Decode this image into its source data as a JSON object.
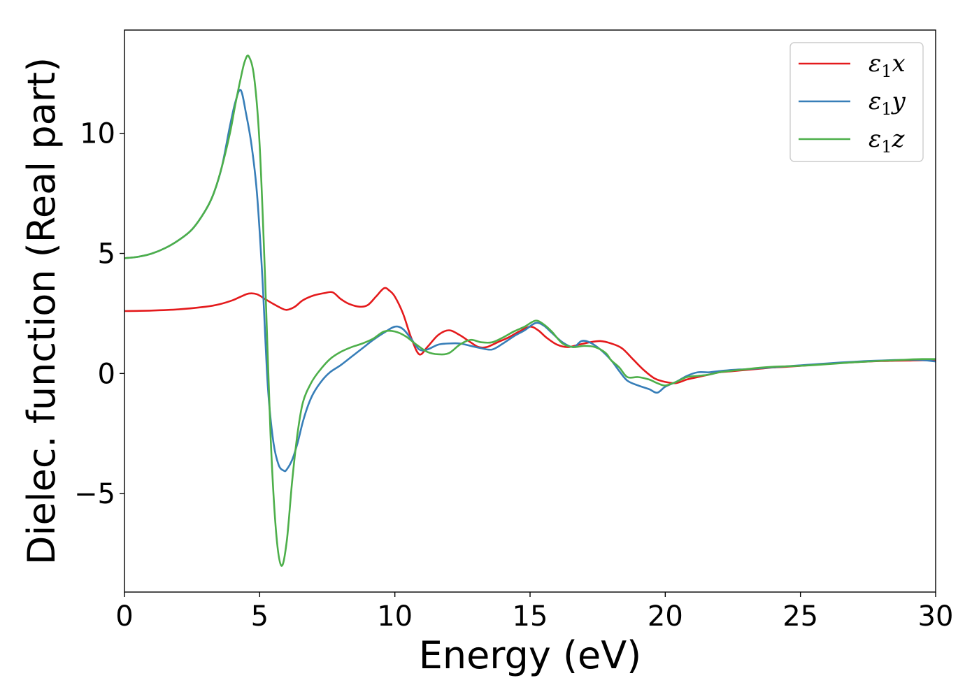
{
  "chart_data": {
    "type": "line",
    "title": "",
    "xlabel": "Energy (eV)",
    "ylabel": "Dielec. function (Real part)",
    "xlim": [
      0,
      30
    ],
    "ylim": [
      -9.1,
      14.3
    ],
    "xticks": [
      0,
      5,
      10,
      15,
      20,
      25,
      30
    ],
    "xtick_labels": [
      "0",
      "5",
      "10",
      "15",
      "20",
      "25",
      "30"
    ],
    "yticks": [
      -5,
      0,
      5,
      10
    ],
    "ytick_labels": [
      "−5",
      "0",
      "5",
      "10"
    ],
    "grid": false,
    "legend_position": "top-right",
    "series": [
      {
        "name": "ε₁x",
        "legend_main": "ε",
        "legend_sub": "1",
        "legend_tail": "x",
        "color": "#e41a1c",
        "x": [
          0,
          1,
          2,
          3,
          3.5,
          4,
          4.3,
          4.6,
          4.9,
          5.2,
          5.5,
          5.8,
          6.0,
          6.3,
          6.6,
          7.0,
          7.4,
          7.7,
          8.0,
          8.3,
          8.7,
          9.0,
          9.3,
          9.6,
          9.8,
          10.0,
          10.3,
          10.6,
          10.9,
          11.2,
          11.6,
          12.0,
          12.4,
          12.8,
          13.1,
          13.4,
          13.8,
          14.2,
          14.6,
          15.0,
          15.3,
          15.6,
          16.0,
          16.4,
          16.8,
          17.2,
          17.6,
          18.0,
          18.4,
          18.8,
          19.2,
          19.6,
          20.0,
          20.4,
          20.8,
          21.2,
          21.6,
          22.0,
          22.5,
          23.0,
          23.5,
          24.0,
          24.5,
          25.0,
          25.5,
          26.0,
          26.5,
          27.0,
          27.5,
          28.0,
          28.5,
          29.0,
          29.5,
          30
        ],
        "y": [
          2.6,
          2.62,
          2.67,
          2.78,
          2.88,
          3.05,
          3.2,
          3.33,
          3.3,
          3.1,
          2.9,
          2.72,
          2.65,
          2.78,
          3.05,
          3.25,
          3.35,
          3.38,
          3.1,
          2.9,
          2.78,
          2.85,
          3.2,
          3.55,
          3.45,
          3.2,
          2.5,
          1.5,
          0.8,
          1.1,
          1.6,
          1.8,
          1.6,
          1.3,
          1.1,
          1.1,
          1.3,
          1.5,
          1.75,
          1.95,
          1.8,
          1.5,
          1.2,
          1.1,
          1.2,
          1.3,
          1.35,
          1.25,
          1.05,
          0.6,
          0.15,
          -0.2,
          -0.35,
          -0.4,
          -0.25,
          -0.15,
          -0.05,
          0.05,
          0.1,
          0.15,
          0.2,
          0.25,
          0.28,
          0.32,
          0.36,
          0.4,
          0.44,
          0.47,
          0.5,
          0.52,
          0.53,
          0.54,
          0.55,
          0.55
        ]
      },
      {
        "name": "ε₁y",
        "legend_main": "ε",
        "legend_sub": "1",
        "legend_tail": "y",
        "color": "#377eb8",
        "x": [
          0,
          0.5,
          1,
          1.5,
          2,
          2.5,
          3,
          3.3,
          3.6,
          3.9,
          4.1,
          4.3,
          4.5,
          4.7,
          4.9,
          5.1,
          5.3,
          5.5,
          5.7,
          5.9,
          6.0,
          6.2,
          6.4,
          6.6,
          6.8,
          7.0,
          7.3,
          7.6,
          8.0,
          8.4,
          8.8,
          9.2,
          9.6,
          10.0,
          10.3,
          10.6,
          10.9,
          11.2,
          11.6,
          12.0,
          12.4,
          12.8,
          13.2,
          13.6,
          14.0,
          14.4,
          14.8,
          15.2,
          15.5,
          15.8,
          16.2,
          16.6,
          16.9,
          17.2,
          17.6,
          18.0,
          18.3,
          18.6,
          19.0,
          19.4,
          19.7,
          20.0,
          20.4,
          20.8,
          21.2,
          21.6,
          22.0,
          22.5,
          23.0,
          23.5,
          24.0,
          24.5,
          25.0,
          25.5,
          26.0,
          26.5,
          27.0,
          27.5,
          28.0,
          28.5,
          29.0,
          29.5,
          30
        ],
        "y": [
          4.8,
          4.86,
          4.99,
          5.22,
          5.55,
          6.0,
          6.8,
          7.5,
          8.6,
          10.3,
          11.3,
          11.8,
          10.8,
          9.5,
          7.5,
          4.0,
          -0.5,
          -2.8,
          -3.8,
          -4.05,
          -4.0,
          -3.6,
          -2.9,
          -2.0,
          -1.3,
          -0.8,
          -0.3,
          0.05,
          0.35,
          0.7,
          1.05,
          1.4,
          1.7,
          1.95,
          1.85,
          1.45,
          1.0,
          1.0,
          1.2,
          1.25,
          1.25,
          1.15,
          1.05,
          1.0,
          1.25,
          1.55,
          1.8,
          2.1,
          2.0,
          1.7,
          1.3,
          1.1,
          1.35,
          1.3,
          1.0,
          0.55,
          0.1,
          -0.3,
          -0.5,
          -0.65,
          -0.8,
          -0.55,
          -0.35,
          -0.1,
          0.05,
          0.05,
          0.1,
          0.15,
          0.18,
          0.22,
          0.26,
          0.3,
          0.34,
          0.38,
          0.42,
          0.46,
          0.49,
          0.52,
          0.54,
          0.56,
          0.57,
          0.56,
          0.5
        ]
      },
      {
        "name": "ε₁z",
        "legend_main": "ε",
        "legend_sub": "1",
        "legend_tail": "z",
        "color": "#4daf4a",
        "x": [
          0,
          0.5,
          1,
          1.5,
          2,
          2.5,
          3,
          3.3,
          3.6,
          3.9,
          4.1,
          4.3,
          4.45,
          4.6,
          4.8,
          5.0,
          5.2,
          5.4,
          5.6,
          5.8,
          6.0,
          6.2,
          6.4,
          6.6,
          6.9,
          7.2,
          7.6,
          8.0,
          8.4,
          8.8,
          9.2,
          9.6,
          10.0,
          10.4,
          10.8,
          11.2,
          11.6,
          12.0,
          12.4,
          12.8,
          13.2,
          13.6,
          14.0,
          14.4,
          14.8,
          15.2,
          15.5,
          15.8,
          16.2,
          16.6,
          17.0,
          17.4,
          17.8,
          18.0,
          18.3,
          18.6,
          19.0,
          19.4,
          19.7,
          20.0,
          20.4,
          20.8,
          21.2,
          21.6,
          22.0,
          22.5,
          23.0,
          23.5,
          24.0,
          24.5,
          25.0,
          25.5,
          26.0,
          26.5,
          27.0,
          27.5,
          28.0,
          28.5,
          29.0,
          29.5,
          30
        ],
        "y": [
          4.8,
          4.86,
          4.99,
          5.22,
          5.55,
          6.0,
          6.8,
          7.5,
          8.6,
          10.0,
          11.2,
          12.3,
          13.0,
          13.2,
          12.3,
          9.5,
          4.0,
          -2.5,
          -6.5,
          -8.0,
          -7.0,
          -4.5,
          -2.5,
          -1.2,
          -0.4,
          0.1,
          0.6,
          0.9,
          1.1,
          1.25,
          1.45,
          1.75,
          1.75,
          1.55,
          1.2,
          0.9,
          0.8,
          0.85,
          1.2,
          1.4,
          1.3,
          1.3,
          1.5,
          1.75,
          1.95,
          2.2,
          2.05,
          1.75,
          1.25,
          1.1,
          1.15,
          1.1,
          0.85,
          0.55,
          0.25,
          -0.15,
          -0.15,
          -0.25,
          -0.4,
          -0.5,
          -0.35,
          -0.15,
          -0.1,
          -0.05,
          0.05,
          0.12,
          0.18,
          0.24,
          0.28,
          0.3,
          0.32,
          0.35,
          0.39,
          0.43,
          0.47,
          0.5,
          0.53,
          0.55,
          0.58,
          0.6,
          0.6
        ]
      }
    ]
  }
}
